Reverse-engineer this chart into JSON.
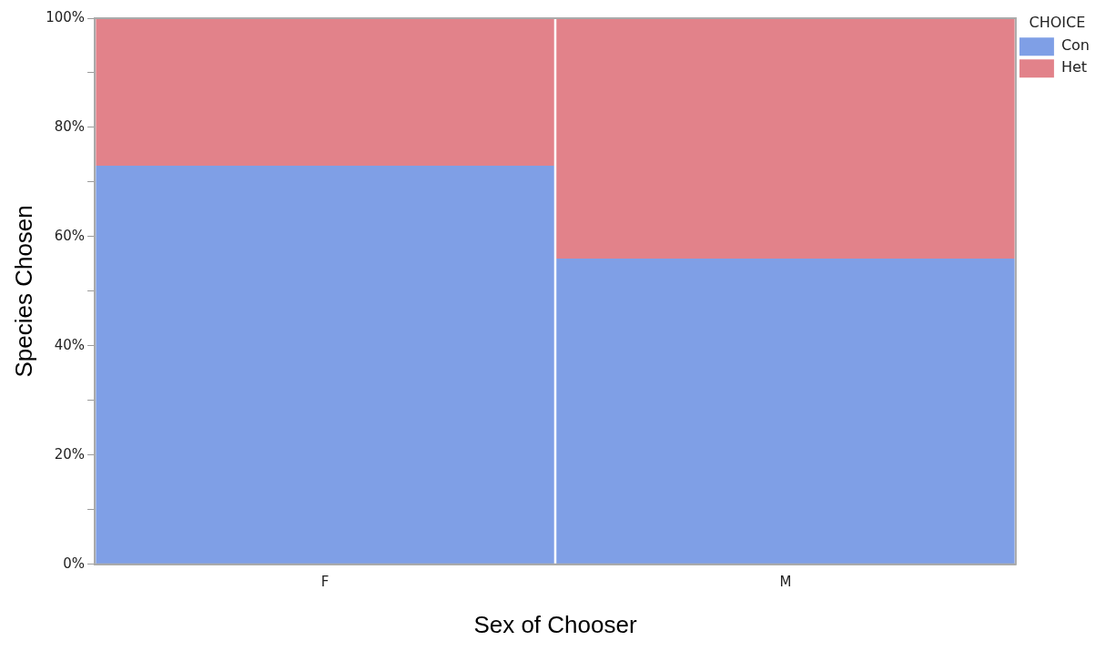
{
  "chart_data": {
    "type": "bar",
    "stacked": true,
    "xlabel": "Sex of Chooser",
    "ylabel": "Species Chosen",
    "legend_title": "CHOICE",
    "legend": "top right",
    "categories": [
      "F",
      "M"
    ],
    "series": [
      {
        "name": "Con",
        "color": "#7f9fe6",
        "values": [
          73,
          56
        ]
      },
      {
        "name": "Het",
        "color": "#e2828a",
        "values": [
          27,
          44
        ]
      }
    ],
    "ylim": [
      0,
      100
    ],
    "yticks": [
      {
        "value": 0,
        "label": "0%"
      },
      {
        "value": 10,
        "label": null
      },
      {
        "value": 20,
        "label": "20%"
      },
      {
        "value": 30,
        "label": null
      },
      {
        "value": 40,
        "label": "40%"
      },
      {
        "value": 50,
        "label": null
      },
      {
        "value": 60,
        "label": "60%"
      },
      {
        "value": 70,
        "label": null
      },
      {
        "value": 80,
        "label": "80%"
      },
      {
        "value": 90,
        "label": null
      },
      {
        "value": 100,
        "label": "100%"
      }
    ],
    "grid": false
  }
}
